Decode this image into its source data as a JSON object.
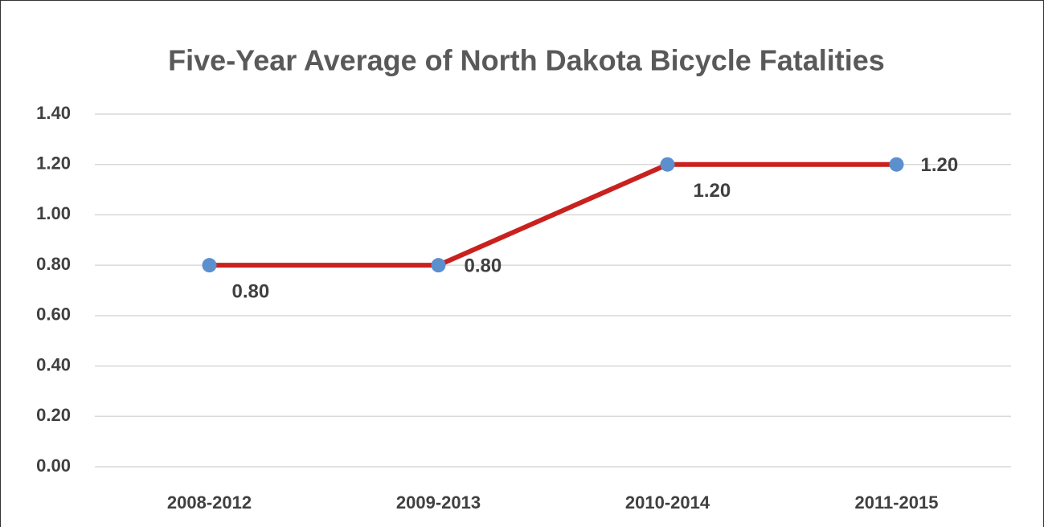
{
  "chart_data": {
    "type": "line",
    "title": "Five-Year Average of North Dakota Bicycle Fatalities",
    "categories": [
      "2008-2012",
      "2009-2013",
      "2010-2014",
      "2011-2015"
    ],
    "series": [
      {
        "name": "Five-Year Average",
        "color": "#c9211e",
        "marker_color": "#5b8fce",
        "values": [
          0.8,
          0.8,
          1.2,
          1.2
        ],
        "value_labels": [
          "0.80",
          "0.80",
          "1.20",
          "1.20"
        ]
      }
    ],
    "ylim": [
      0,
      1.4
    ],
    "yticks": [
      {
        "value": 0,
        "label": "0.00"
      },
      {
        "value": 0.2,
        "label": "0.20"
      },
      {
        "value": 0.4,
        "label": "0.40"
      },
      {
        "value": 0.6,
        "label": "0.60"
      },
      {
        "value": 0.8,
        "label": "0.80"
      },
      {
        "value": 1.0,
        "label": "1.00"
      },
      {
        "value": 1.2,
        "label": "1.20"
      },
      {
        "value": 1.4,
        "label": "1.40"
      }
    ],
    "grid": true
  }
}
